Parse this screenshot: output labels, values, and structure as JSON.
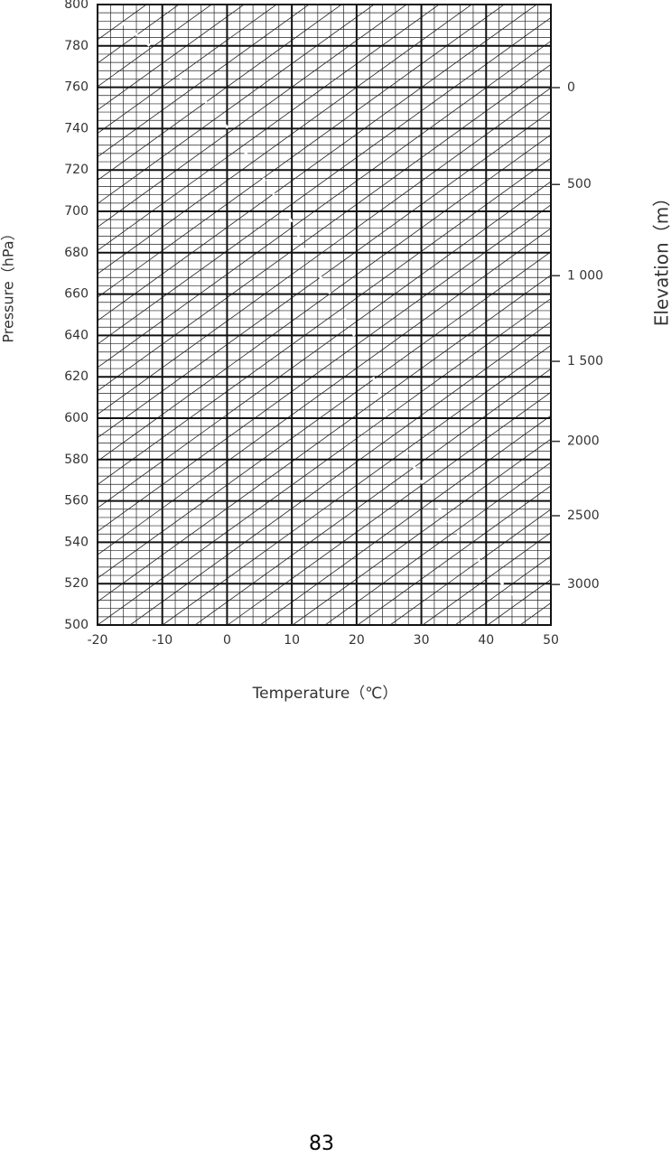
{
  "chart_data": {
    "type": "grid",
    "xlabel": "Temperature（℃）",
    "ylabel": "Pressure（hPa）",
    "y2label": "Elevation（m）",
    "xlim": [
      -20,
      50
    ],
    "xticks": [
      -20,
      -10,
      0,
      10,
      20,
      30,
      40,
      50
    ],
    "ylim": [
      500,
      800
    ],
    "yticks": [
      500,
      520,
      540,
      560,
      580,
      600,
      620,
      640,
      660,
      680,
      700,
      720,
      740,
      760,
      780,
      800
    ],
    "y2ticks": [
      0,
      500,
      {
        "value": 1000,
        "label": "1 000"
      },
      {
        "value": 1500,
        "label": "1 500"
      },
      2000,
      2500,
      3000
    ],
    "grid": true
  },
  "page_number": "83"
}
